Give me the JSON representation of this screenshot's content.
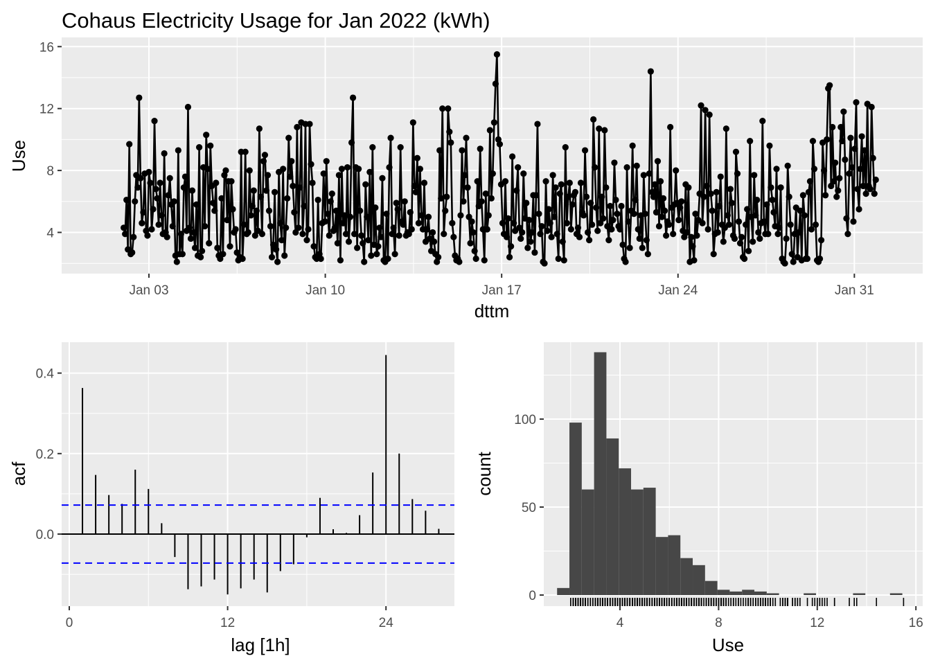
{
  "figure_title": "Cohaus Electricity Usage for Jan 2022 (kWh)",
  "chart_data": [
    {
      "type": "line",
      "title": "Cohaus Electricity Usage for Jan 2022 (kWh)",
      "xlabel": "dttm",
      "ylabel": "Use",
      "x_ticks": [
        "Jan 03",
        "Jan 10",
        "Jan 17",
        "Jan 24",
        "Jan 31"
      ],
      "y_ticks": [
        4,
        8,
        12,
        16
      ],
      "ylim": [
        1.3,
        16.2
      ],
      "x_start": "2022-01-01 00:00",
      "x_end": "2022-01-31 23:00",
      "interval": "1h",
      "points_shown": "hourly series with points",
      "series": [
        {
          "name": "Use",
          "values": [
            4.3,
            3.9,
            6.1,
            2.9,
            9.7,
            2.6,
            2.7,
            3.7,
            6.0,
            7.7,
            6.9,
            12.7,
            7.5,
            4.6,
            5.3,
            7.8,
            4.1,
            3.8,
            7.9,
            7.2,
            4.2,
            5.5,
            11.2,
            6.8,
            6.2,
            4.5,
            7.2,
            5.1,
            3.9,
            9.1,
            4.0,
            3.7,
            6.4,
            7.5,
            5.8,
            4.4,
            6.0,
            2.5,
            2.1,
            9.3,
            2.6,
            3.9,
            2.6,
            6.9,
            7.6,
            4.1,
            12.1,
            4.3,
            3.6,
            6.7,
            4.0,
            3.0,
            5.8,
            2.5,
            9.5,
            2.4,
            2.8,
            8.2,
            4.4,
            10.3,
            8.1,
            3.3,
            9.6,
            7.0,
            5.9,
            5.4,
            7.2,
            3.0,
            2.5,
            2.3,
            6.2,
            2.6,
            7.7,
            8.0,
            4.8,
            7.3,
            3.1,
            7.3,
            5.5,
            4.0,
            4.2,
            2.7,
            2.2,
            2.4,
            9.2,
            2.3,
            4.5,
            9.2,
            3.9,
            4.0,
            8.0,
            5.1,
            5.7,
            6.7,
            3.8,
            5.4,
            4.1,
            10.7,
            6.3,
            3.9,
            8.6,
            9.0,
            6.7,
            7.7,
            5.4,
            4.4,
            2.4,
            3.2,
            6.6,
            2.9,
            2.1,
            7.9,
            4.6,
            3.5,
            8.1,
            2.5,
            4.3,
            6.2,
            10.1,
            7.6,
            8.6,
            7.0,
            5.3,
            4.0,
            10.8,
            4.3,
            6.9,
            11.1,
            3.9,
            5.7,
            11.0,
            3.5,
            4.2,
            11.0,
            8.4,
            7.2,
            3.1,
            2.4,
            2.3,
            6.1,
            2.6,
            2.3,
            4.6,
            7.8,
            4.7,
            8.6,
            5.2,
            3.8,
            6.0,
            6.5,
            4.1,
            4.3,
            5.4,
            3.3,
            7.7,
            2.2,
            8.1,
            4.6,
            5.1,
            3.9,
            8.2,
            3.4,
            5.0,
            9.8,
            12.7,
            3.9,
            8.2,
            3.0,
            8.1,
            5.4,
            3.8,
            3.3,
            2.1,
            7.1,
            5.0,
            3.5,
            7.9,
            2.5,
            9.5,
            3.2,
            5.6,
            2.6,
            3.1,
            4.3,
            3.7,
            7.5,
            2.2,
            2.1,
            5.2,
            2.3,
            8.2,
            10.1,
            3.9,
            4.3,
            2.6,
            5.9,
            5.5,
            3.8,
            9.5,
            4.7,
            4.5,
            6.0,
            3.8,
            4.0,
            3.9,
            5.3,
            4.2,
            11.1,
            7.0,
            6.6,
            8.8,
            4.6,
            8.1,
            5.1,
            4.2,
            7.2,
            3.4,
            4.2,
            5.0,
            3.6,
            2.8,
            4.0,
            3.4,
            2.6,
            2.1,
            2.4,
            9.3,
            6.2,
            12.0,
            3.9,
            5.4,
            6.3,
            12.0,
            10.5,
            9.8,
            4.6,
            3.7,
            2.5,
            2.2,
            2.3,
            2.1,
            5.1,
            9.3,
            6.0,
            7.7,
            10.1,
            6.9,
            5.0,
            3.3,
            4.7,
            4.0,
            2.8,
            2.3,
            7.3,
            5.7,
            9.4,
            6.0,
            4.2,
            2.2,
            6.5,
            4.2,
            5.1,
            10.6,
            6.2,
            7.8,
            11.1,
            13.6,
            15.5,
            10.0,
            9.7,
            7.1,
            4.6,
            3.9,
            7.3,
            3.7,
            4.9,
            2.4,
            3.1,
            8.9,
            4.6,
            4.1,
            6.7,
            8.2,
            4.3,
            3.6,
            4.0,
            7.8,
            4.9,
            5.9,
            3.0,
            4.8,
            3.4,
            4.0,
            6.4,
            2.7,
            6.4,
            11.0,
            5.2,
            3.9,
            4.4,
            2.1,
            2.0,
            7.3,
            4.1,
            5.5,
            4.6,
            3.7,
            7.7,
            5.0,
            6.9,
            3.9,
            2.3,
            6.5,
            7.1,
            3.4,
            2.2,
            9.5,
            4.6,
            6.3,
            7.2,
            4.2,
            5.8,
            6.4,
            6.6,
            3.9,
            4.3,
            3.7,
            7.2,
            5.3,
            5.1,
            9.3,
            6.3,
            4.0,
            3.5,
            5.9,
            4.5,
            11.3,
            8.2,
            5.6,
            4.1,
            10.7,
            4.6,
            6.3,
            4.9,
            10.6,
            6.9,
            4.4,
            3.5,
            5.7,
            4.2,
            4.8,
            8.5,
            6.1,
            5.2,
            4.4,
            4.2,
            5.7,
            3.2,
            2.3,
            2.1,
            8.2,
            4.7,
            3.0,
            5.4,
            9.6,
            5.2,
            6.1,
            8.3,
            4.2,
            3.6,
            5.1,
            3.0,
            7.7,
            5.2,
            3.5,
            2.6,
            7.8,
            14.4,
            6.6,
            6.3,
            7.1,
            5.3,
            8.6,
            4.4,
            7.3,
            5.0,
            6.2,
            5.4,
            3.8,
            4.7,
            4.5,
            10.8,
            5.6,
            3.9,
            5.8,
            8.0,
            5.9,
            4.8,
            5.6,
            6.0,
            4.1,
            3.7,
            7.1,
            4.0,
            6.9,
            2.1,
            3.7,
            3.1,
            2.2,
            5.2,
            3.8,
            4.8,
            6.5,
            12.2,
            4.6,
            6.3,
            11.9,
            7.0,
            4.2,
            11.6,
            6.5,
            5.4,
            2.6,
            3.9,
            6.6,
            4.0,
            5.7,
            7.6,
            4.5,
            3.4,
            4.3,
            10.7,
            5.1,
            4.5,
            6.8,
            5.9,
            3.8,
            3.6,
            9.2,
            7.8,
            4.7,
            3.3,
            3.7,
            2.4,
            2.3,
            4.5,
            5.5,
            2.8,
            9.9,
            5.0,
            3.4,
            7.7,
            5.1,
            6.1,
            4.0,
            3.6,
            4.6,
            11.2,
            4.7,
            3.9,
            5.8,
            3.9,
            9.6,
            6.9,
            6.1,
            5.3,
            4.4,
            8.1,
            3.9,
            4.3,
            6.9,
            2.3,
            2.1,
            2.0,
            3.6,
            8.3,
            6.3,
            4.5,
            2.6,
            2.1,
            3.9,
            5.6,
            2.4,
            4.0,
            5.4,
            2.2,
            6.4,
            5.1,
            2.3,
            2.3,
            6.6,
            7.3,
            4.2,
            9.9,
            8.1,
            4.5,
            2.2,
            2.1,
            2.3,
            3.5,
            9.8,
            8.0,
            6.4,
            10.0,
            13.3,
            13.5,
            7.0,
            10.8,
            7.3,
            8.5,
            6.3,
            6.7,
            7.5,
            10.8,
            9.9,
            11.8,
            8.7,
            4.9,
            3.9,
            7.8,
            10.1,
            8.2,
            4.7,
            9.4,
            12.4,
            6.8,
            5.5,
            8.1,
            10.2,
            7.0,
            9.3,
            6.5,
            12.3,
            7.0,
            6.8,
            12.1,
            8.8,
            6.5,
            7.4
          ]
        }
      ]
    },
    {
      "type": "bar",
      "subtype": "acf",
      "xlabel": "lag [1h]",
      "ylabel": "acf",
      "x_ticks": [
        0,
        12,
        24
      ],
      "y_ticks": [
        0.0,
        0.2,
        0.4
      ],
      "xlim": [
        -0.2,
        29.6
      ],
      "ylim": [
        -0.175,
        0.47
      ],
      "lags": [
        1,
        2,
        3,
        4,
        5,
        6,
        7,
        8,
        9,
        10,
        11,
        12,
        13,
        14,
        15,
        16,
        17,
        18,
        19,
        20,
        21,
        22,
        23,
        24,
        25,
        26,
        27,
        28
      ],
      "values": [
        0.363,
        0.147,
        0.097,
        0.075,
        0.16,
        0.112,
        0.027,
        -0.057,
        -0.137,
        -0.13,
        -0.113,
        -0.15,
        -0.135,
        -0.113,
        -0.145,
        -0.092,
        -0.075,
        -0.008,
        0.09,
        0.012,
        0.003,
        0.047,
        0.153,
        0.445,
        0.2,
        0.087,
        0.058,
        0.013
      ],
      "confidence_bounds": [
        0.072,
        -0.072
      ]
    },
    {
      "type": "bar",
      "subtype": "histogram",
      "xlabel": "Use",
      "ylabel": "count",
      "x_ticks": [
        4,
        8,
        12,
        16
      ],
      "y_ticks": [
        0,
        50,
        100
      ],
      "xlim": [
        1.05,
        16.3
      ],
      "ylim": [
        -6,
        145
      ],
      "bin_width": 0.5,
      "bin_edges": [
        1.45,
        15.45
      ],
      "values": [
        4,
        98,
        60,
        138,
        89,
        72,
        60,
        61,
        33,
        34,
        21,
        17,
        8,
        3,
        2,
        3,
        2,
        1,
        0,
        0,
        1,
        0,
        0,
        0,
        1,
        0,
        0,
        1
      ],
      "rug": true
    }
  ]
}
